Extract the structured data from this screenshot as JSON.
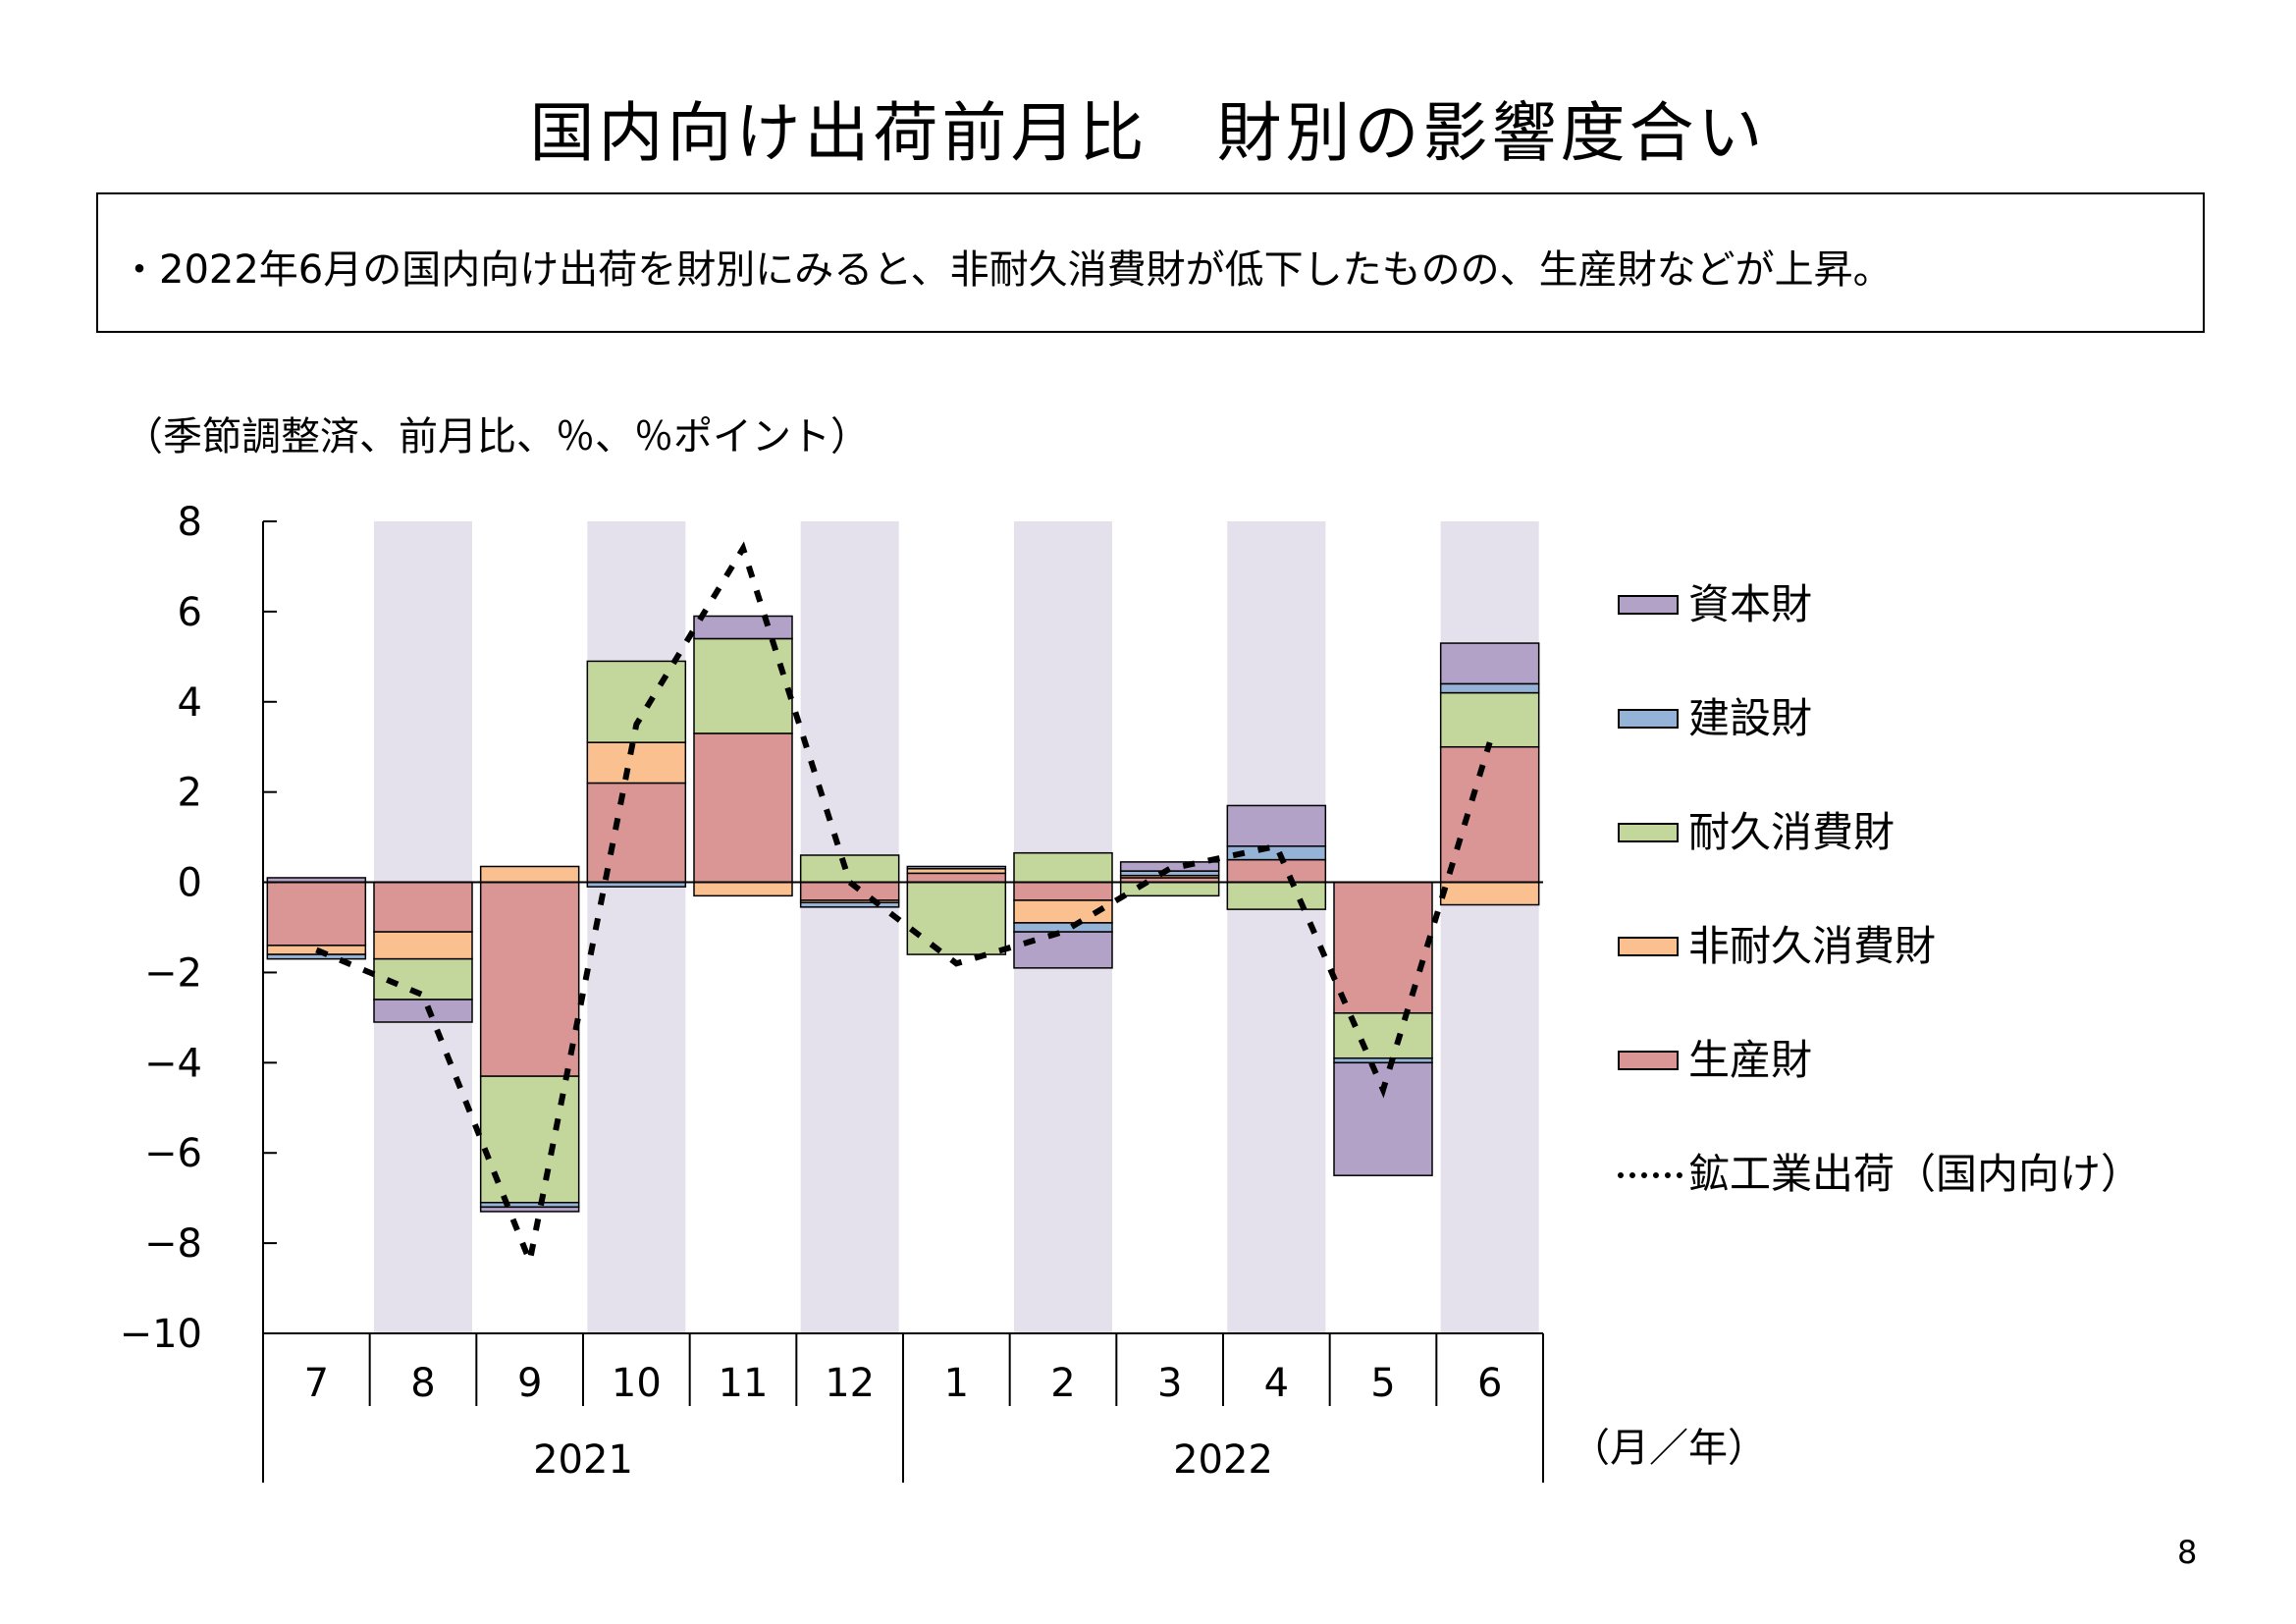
{
  "title": "国内向け出荷前月比　財別の影響度合い",
  "summary": "・2022年6月の国内向け出荷を財別にみると、非耐久消費財が低下したものの、生産財などが上昇。",
  "units_note": "（季節調整済、前月比、％、％ポイント）",
  "page_number": "8",
  "chart_data": {
    "type": "bar",
    "stacked": true,
    "categories": [
      "7",
      "8",
      "9",
      "10",
      "11",
      "12",
      "1",
      "2",
      "3",
      "4",
      "5",
      "6"
    ],
    "year_groups": [
      {
        "label": "2021",
        "start": 0,
        "end": 5
      },
      {
        "label": "2022",
        "start": 6,
        "end": 11
      }
    ],
    "x_unit_label": "（月／年）",
    "ylim": [
      -10,
      8
    ],
    "yticks": [
      8,
      6,
      4,
      2,
      0,
      -2,
      -4,
      -6,
      -8,
      -10
    ],
    "ytick_labels": [
      "8",
      "6",
      "4",
      "2",
      "0",
      "−2",
      "−4",
      "−6",
      "−8",
      "−10"
    ],
    "shaded_categories": [
      1,
      3,
      5,
      7,
      9,
      11
    ],
    "shade_color": "#e4e0ec",
    "series": [
      {
        "name": "生産財",
        "color": "#d99694",
        "values": [
          -1.4,
          -1.1,
          -4.3,
          2.2,
          3.3,
          -0.4,
          0.2,
          -0.4,
          0.1,
          0.5,
          -2.9,
          3.0
        ]
      },
      {
        "name": "非耐久消費財",
        "color": "#fac090",
        "values": [
          -0.2,
          -0.6,
          0.35,
          0.9,
          -0.3,
          -0.05,
          0.1,
          -0.5,
          0.05,
          0.0,
          0.0,
          -0.5
        ]
      },
      {
        "name": "耐久消費財",
        "color": "#c3d69b",
        "values": [
          0.0,
          -0.9,
          -2.8,
          1.8,
          2.1,
          0.6,
          -1.6,
          0.65,
          -0.3,
          -0.6,
          -1.0,
          1.2
        ]
      },
      {
        "name": "建設財",
        "color": "#95b3d7",
        "values": [
          -0.1,
          0.0,
          -0.1,
          -0.1,
          0.0,
          -0.1,
          0.05,
          -0.2,
          0.1,
          0.3,
          -0.1,
          0.2
        ]
      },
      {
        "name": "資本財",
        "color": "#b3a2c7",
        "values": [
          0.1,
          -0.5,
          -0.1,
          0.0,
          0.5,
          0.0,
          0.0,
          -0.8,
          0.2,
          0.9,
          -2.5,
          0.9
        ]
      }
    ],
    "line": {
      "name": "鉱工業出荷（国内向け）",
      "style": "dotted",
      "color": "#000000",
      "values": [
        -1.5,
        -2.5,
        -8.4,
        3.5,
        7.4,
        0.0,
        -1.8,
        -1.1,
        0.3,
        0.8,
        -4.6,
        3.1
      ]
    },
    "legend_order": [
      "資本財",
      "建設財",
      "耐久消費財",
      "非耐久消費財",
      "生産財",
      "鉱工業出荷（国内向け）"
    ],
    "legend_position": "right"
  }
}
